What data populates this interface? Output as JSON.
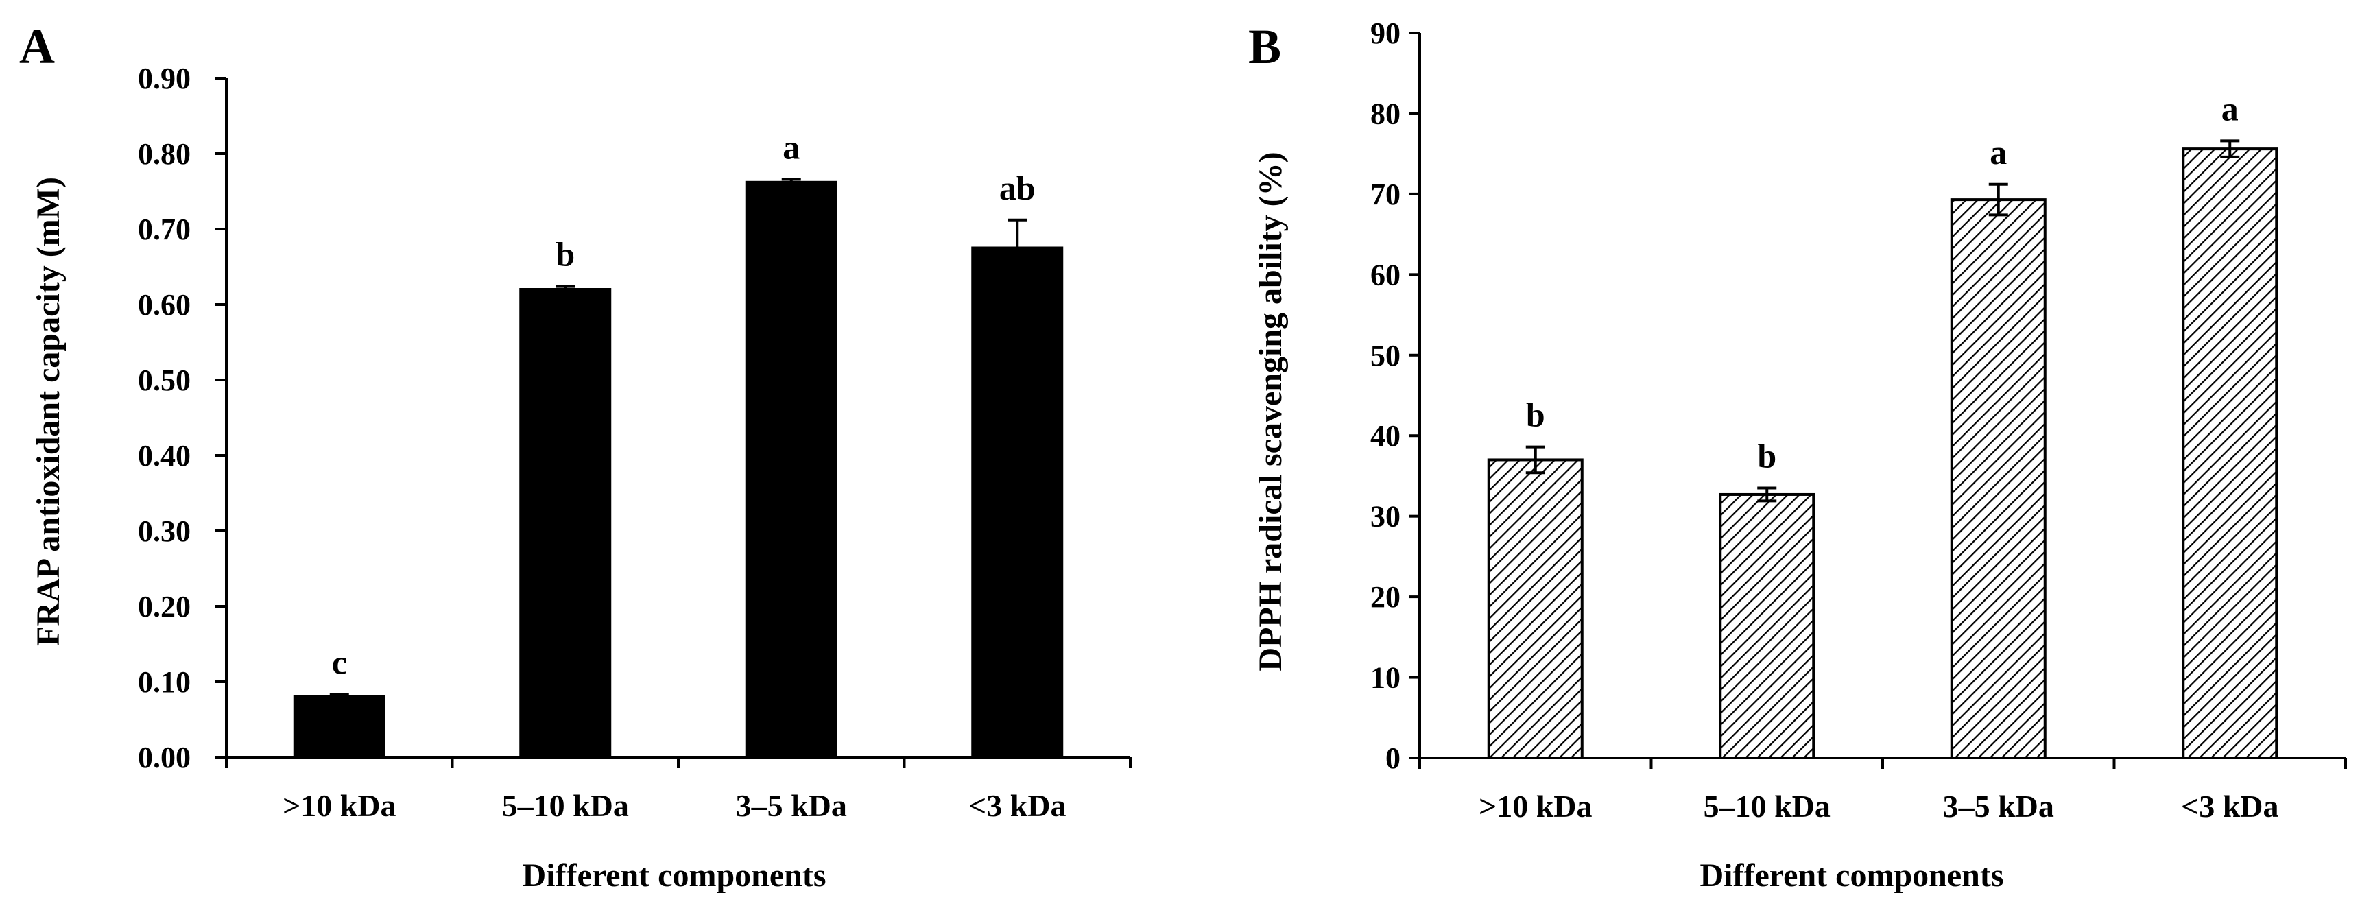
{
  "figure": {
    "panels": [
      {
        "letter": "A",
        "ytick_labels": [
          "0.00",
          "0.10",
          "0.20",
          "0.30",
          "0.40",
          "0.50",
          "0.60",
          "0.70",
          "0.80",
          "0.90"
        ],
        "sig_labels": [
          "c",
          "b",
          "a",
          "ab"
        ]
      },
      {
        "letter": "B",
        "ytick_labels": [
          "0",
          "10",
          "20",
          "30",
          "40",
          "50",
          "60",
          "70",
          "80",
          "90"
        ],
        "sig_labels": [
          "b",
          "b",
          "a",
          "a"
        ]
      }
    ]
  },
  "chart_data": [
    {
      "type": "bar",
      "panel": "A",
      "title": "",
      "categories": [
        ">10 kDa",
        "5–10 kDa",
        "3–5 kDa",
        "<3 kDa"
      ],
      "values": [
        0.08,
        0.62,
        0.762,
        0.675
      ],
      "errors": [
        0.003,
        0.004,
        0.004,
        0.037
      ],
      "significance": [
        "c",
        "b",
        "a",
        "ab"
      ],
      "xlabel": "Different components",
      "ylabel": "FRAP antioxidant capacity (mM)",
      "ylim": [
        0,
        0.9
      ],
      "ytick_step": 0.1,
      "bar_fill": "solid",
      "bar_color": "#000000",
      "grid": false
    },
    {
      "type": "bar",
      "panel": "B",
      "title": "",
      "categories": [
        ">10 kDa",
        "5–10 kDa",
        "3–5 kDa",
        "<3 kDa"
      ],
      "values": [
        37.0,
        32.7,
        69.3,
        75.6
      ],
      "errors": [
        1.6,
        0.8,
        1.9,
        1.0
      ],
      "significance": [
        "b",
        "b",
        "a",
        "a"
      ],
      "xlabel": "Different components",
      "ylabel": "DPPH radical scavenging ability (%)",
      "ylim": [
        0,
        90
      ],
      "ytick_step": 10,
      "bar_fill": "diagonal-hatch",
      "bar_color": "#000000",
      "grid": false
    }
  ]
}
